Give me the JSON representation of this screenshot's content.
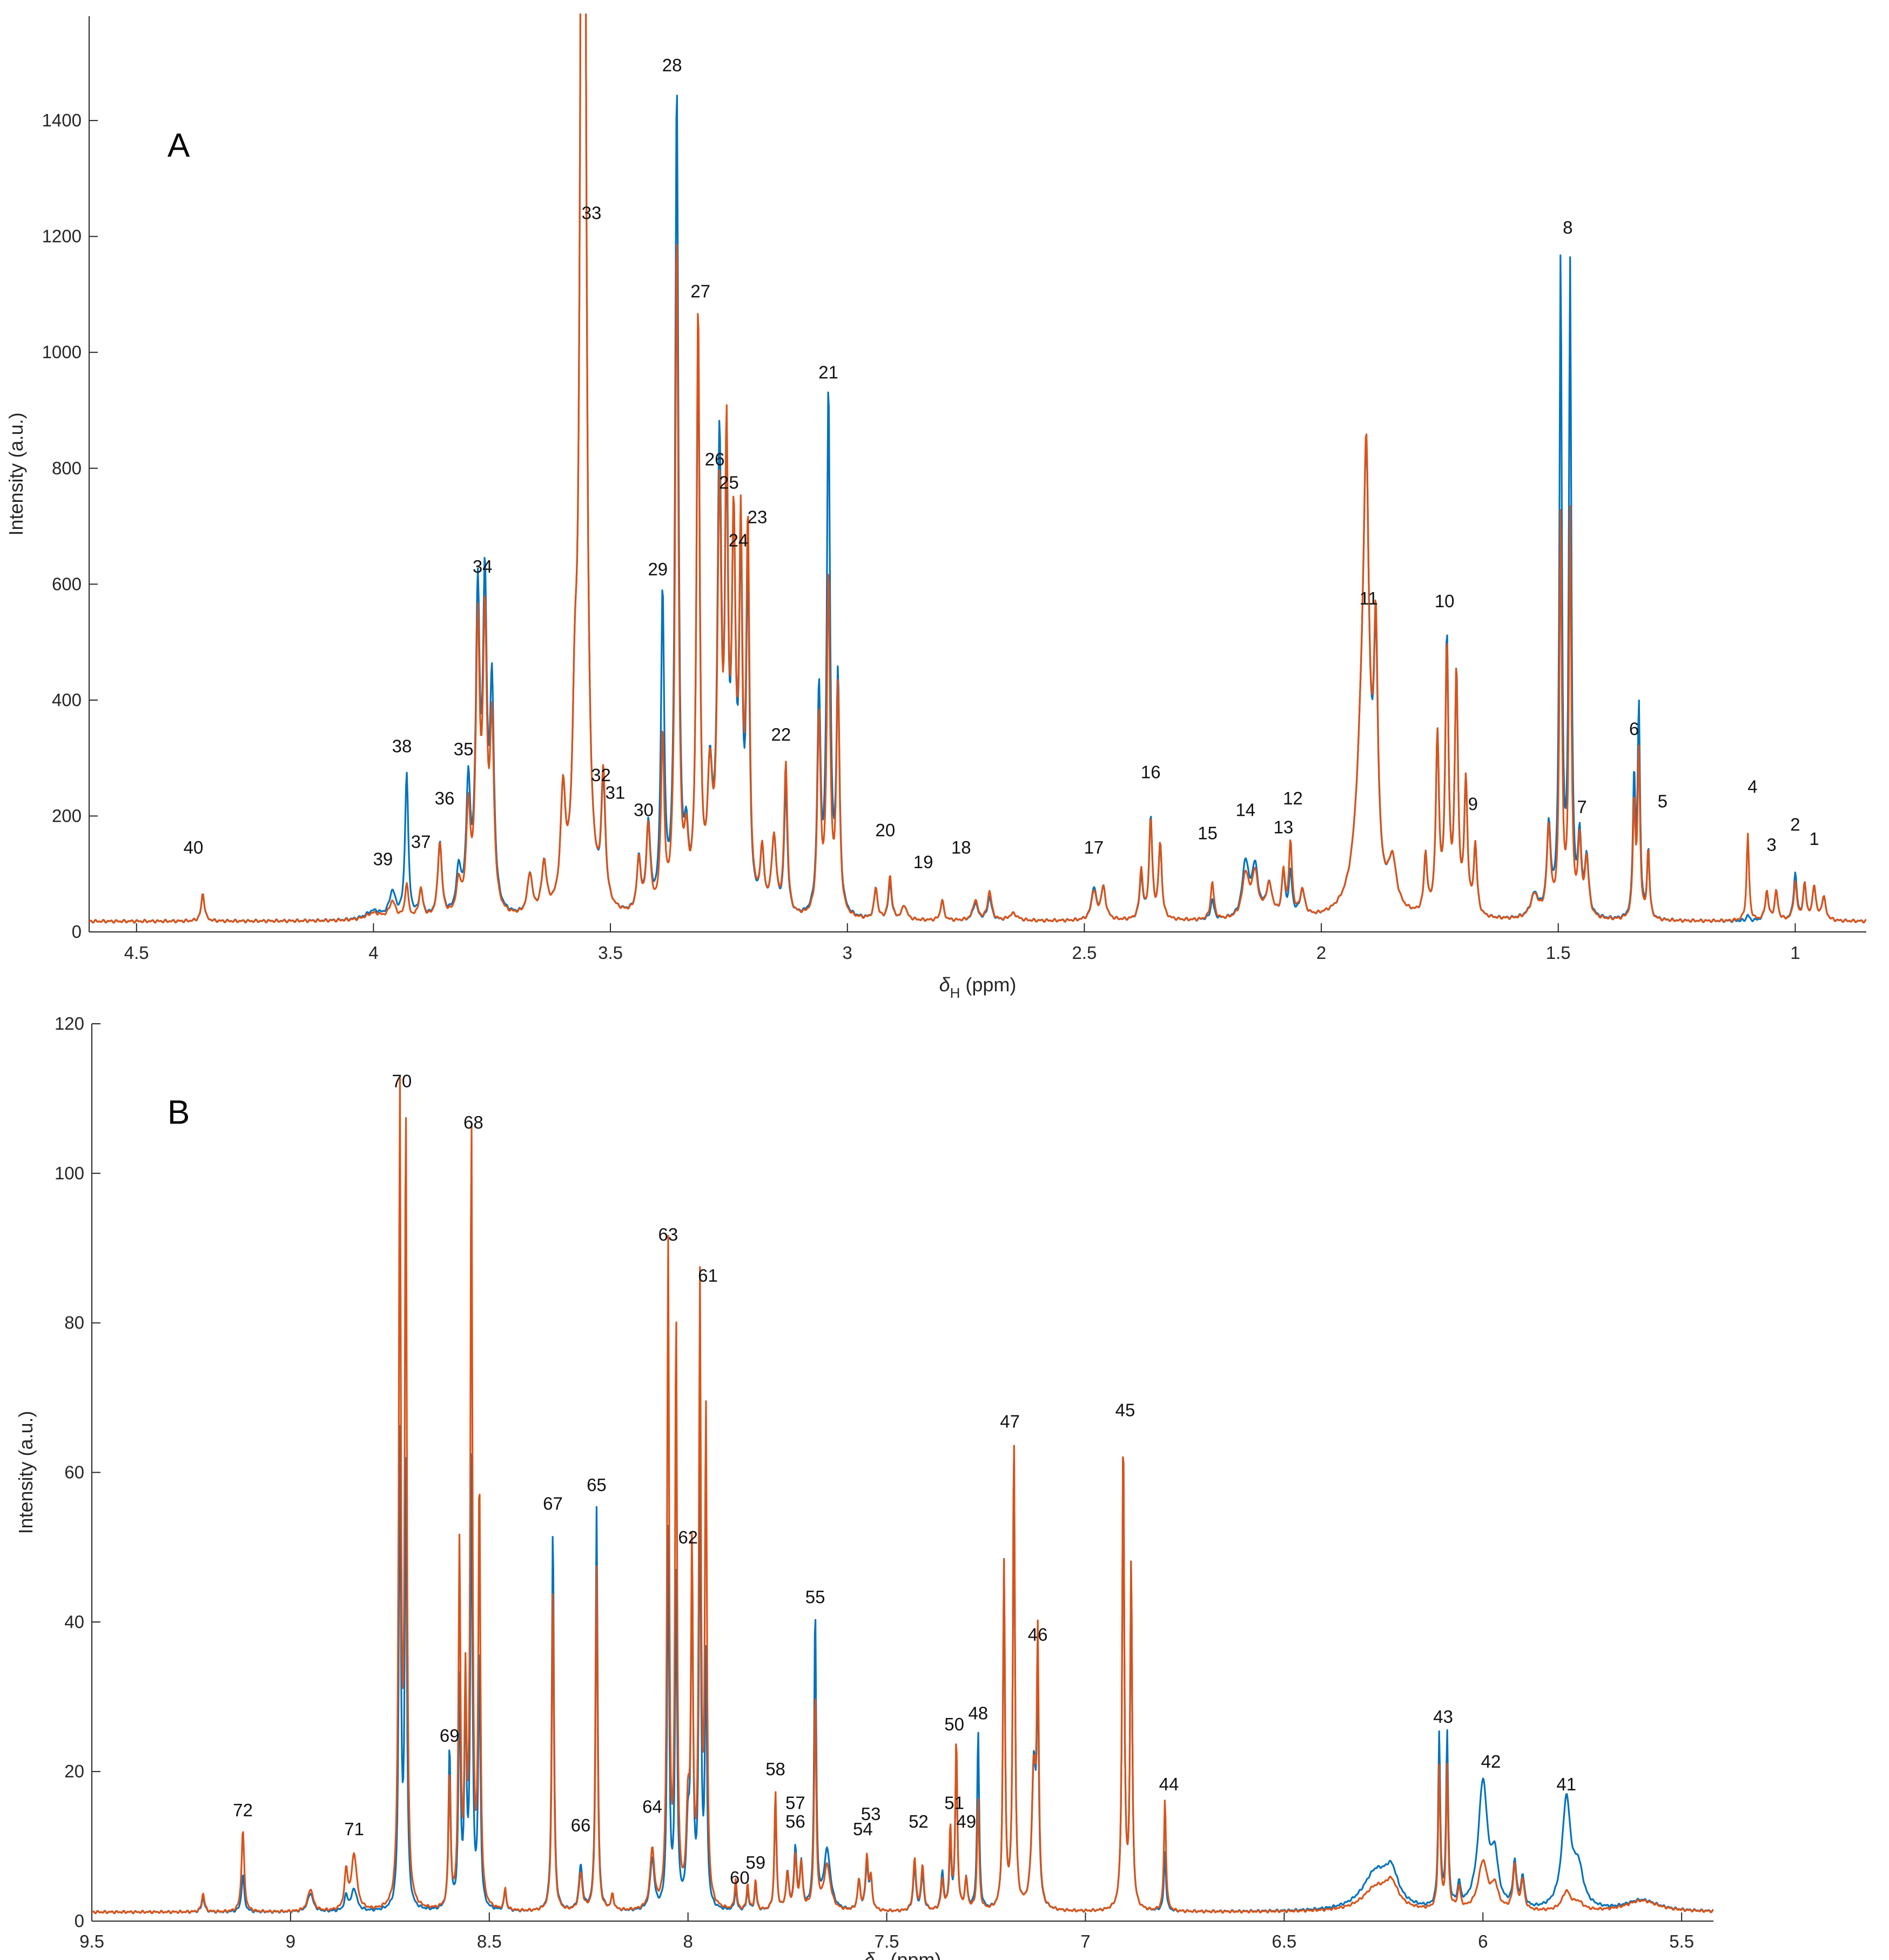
{
  "chart_data": [
    {
      "type": "line",
      "panel_label": "A",
      "xlabel_main": "δ",
      "xlabel_sub": "H",
      "xlabel_unit": " (ppm)",
      "ylabel": "Intensity (a.u.)",
      "xlim": [
        4.6,
        0.85
      ],
      "ylim": [
        0,
        1580
      ],
      "xticks": [
        4.5,
        4,
        3.5,
        3,
        2.5,
        2,
        1.5,
        1
      ],
      "xtick_labels": [
        "4.5",
        "4",
        "3.5",
        "3",
        "2.5",
        "2",
        "1.5",
        "1"
      ],
      "yticks": [
        0,
        200,
        400,
        600,
        800,
        1000,
        1200,
        1400
      ],
      "ytick_labels": [
        "0",
        "200",
        "400",
        "600",
        "800",
        "1000",
        "1200",
        "1400"
      ],
      "baseline": 18,
      "colors": {
        "blue": "#0072BD",
        "orange": "#D95319"
      },
      "peaks": [
        [
          4.36,
          48,
          48,
          0.004
        ],
        [
          4.0,
          15,
          12,
          0.02
        ],
        [
          3.96,
          45,
          30,
          0.008
        ],
        [
          3.93,
          250,
          60,
          0.004
        ],
        [
          3.9,
          45,
          50,
          0.005
        ],
        [
          3.86,
          130,
          130,
          0.005
        ],
        [
          3.82,
          75,
          55,
          0.006
        ],
        [
          3.8,
          215,
          175,
          0.005
        ],
        [
          3.78,
          525,
          475,
          0.005
        ],
        [
          3.765,
          535,
          480,
          0.005
        ],
        [
          3.75,
          370,
          310,
          0.005
        ],
        [
          3.67,
          70,
          70,
          0.006
        ],
        [
          3.64,
          85,
          85,
          0.006
        ],
        [
          3.6,
          190,
          190,
          0.006
        ],
        [
          3.575,
          260,
          260,
          0.006
        ],
        [
          3.56,
          1570,
          1570,
          0.005
        ],
        [
          3.555,
          1570,
          1570,
          0.005
        ],
        [
          3.515,
          205,
          220,
          0.005
        ],
        [
          3.44,
          90,
          90,
          0.005
        ],
        [
          3.42,
          150,
          150,
          0.005
        ],
        [
          3.39,
          545,
          300,
          0.004
        ],
        [
          3.36,
          1425,
          1165,
          0.004
        ],
        [
          3.34,
          100,
          100,
          0.005
        ],
        [
          3.315,
          980,
          1030,
          0.004
        ],
        [
          3.29,
          210,
          210,
          0.006
        ],
        [
          3.27,
          770,
          680,
          0.005
        ],
        [
          3.255,
          665,
          735,
          0.004
        ],
        [
          3.24,
          610,
          610,
          0.005
        ],
        [
          3.225,
          560,
          600,
          0.004
        ],
        [
          3.21,
          560,
          640,
          0.004
        ],
        [
          3.18,
          100,
          100,
          0.005
        ],
        [
          3.155,
          130,
          130,
          0.006
        ],
        [
          3.13,
          220,
          260,
          0.004
        ],
        [
          3.06,
          380,
          340,
          0.004
        ],
        [
          3.04,
          900,
          580,
          0.004
        ],
        [
          3.02,
          400,
          390,
          0.004
        ],
        [
          2.94,
          55,
          55,
          0.004
        ],
        [
          2.91,
          65,
          75,
          0.004
        ],
        [
          2.88,
          25,
          25,
          0.006
        ],
        [
          2.8,
          35,
          35,
          0.004
        ],
        [
          2.73,
          30,
          35,
          0.006
        ],
        [
          2.7,
          40,
          50,
          0.005
        ],
        [
          2.65,
          12,
          12,
          0.01
        ],
        [
          2.48,
          55,
          50,
          0.006
        ],
        [
          2.46,
          55,
          55,
          0.006
        ],
        [
          2.38,
          75,
          85,
          0.004
        ],
        [
          2.36,
          175,
          170,
          0.004
        ],
        [
          2.34,
          130,
          130,
          0.004
        ],
        [
          2.23,
          35,
          65,
          0.004
        ],
        [
          2.16,
          95,
          75,
          0.008
        ],
        [
          2.14,
          85,
          75,
          0.008
        ],
        [
          2.11,
          55,
          55,
          0.008
        ],
        [
          2.08,
          75,
          75,
          0.004
        ],
        [
          2.065,
          75,
          125,
          0.004
        ],
        [
          2.04,
          45,
          45,
          0.006
        ],
        [
          1.91,
          380,
          380,
          0.016
        ],
        [
          1.905,
          460,
          470,
          0.006
        ],
        [
          1.885,
          380,
          400,
          0.005
        ],
        [
          1.85,
          80,
          80,
          0.01
        ],
        [
          1.78,
          100,
          100,
          0.004
        ],
        [
          1.755,
          300,
          300,
          0.004
        ],
        [
          1.735,
          470,
          455,
          0.004
        ],
        [
          1.715,
          410,
          410,
          0.004
        ],
        [
          1.695,
          225,
          225,
          0.004
        ],
        [
          1.675,
          120,
          120,
          0.004
        ],
        [
          1.55,
          40,
          40,
          0.01
        ],
        [
          1.52,
          150,
          150,
          0.005
        ],
        [
          1.495,
          1125,
          690,
          0.003
        ],
        [
          1.475,
          1110,
          690,
          0.003
        ],
        [
          1.455,
          130,
          130,
          0.004
        ],
        [
          1.44,
          100,
          100,
          0.005
        ],
        [
          1.34,
          240,
          200,
          0.003
        ],
        [
          1.33,
          360,
          285,
          0.003
        ],
        [
          1.31,
          120,
          120,
          0.003
        ],
        [
          1.1,
          10,
          150,
          0.003
        ],
        [
          1.06,
          50,
          50,
          0.004
        ],
        [
          1.04,
          50,
          50,
          0.004
        ],
        [
          1.0,
          80,
          65,
          0.004
        ],
        [
          0.98,
          60,
          60,
          0.004
        ],
        [
          0.96,
          60,
          60,
          0.004
        ],
        [
          0.94,
          40,
          40,
          0.005
        ]
      ],
      "labels": [
        [
          "1",
          0.96,
          150
        ],
        [
          "2",
          1.0,
          175
        ],
        [
          "3",
          1.05,
          140
        ],
        [
          "4",
          1.09,
          240
        ],
        [
          "5",
          1.28,
          215
        ],
        [
          "6",
          1.34,
          340
        ],
        [
          "7",
          1.45,
          205
        ],
        [
          "8",
          1.48,
          1205
        ],
        [
          "9",
          1.68,
          210
        ],
        [
          "10",
          1.74,
          560
        ],
        [
          "11",
          1.9,
          565
        ],
        [
          "12",
          2.06,
          220
        ],
        [
          "13",
          2.08,
          170
        ],
        [
          "14",
          2.16,
          200
        ],
        [
          "15",
          2.24,
          160
        ],
        [
          "16",
          2.36,
          265
        ],
        [
          "17",
          2.48,
          135
        ],
        [
          "18",
          2.76,
          135
        ],
        [
          "19",
          2.84,
          110
        ],
        [
          "20",
          2.92,
          165
        ],
        [
          "21",
          3.04,
          955
        ],
        [
          "22",
          3.14,
          330
        ],
        [
          "23",
          3.19,
          705
        ],
        [
          "24",
          3.23,
          665
        ],
        [
          "25",
          3.25,
          765
        ],
        [
          "26",
          3.28,
          805
        ],
        [
          "27",
          3.31,
          1095
        ],
        [
          "28",
          3.37,
          1485
        ],
        [
          "29",
          3.4,
          615
        ],
        [
          "30",
          3.43,
          200
        ],
        [
          "31",
          3.49,
          230
        ],
        [
          "32",
          3.52,
          260
        ],
        [
          "33",
          3.54,
          1230
        ],
        [
          "34",
          3.77,
          620
        ],
        [
          "35",
          3.81,
          305
        ],
        [
          "36",
          3.85,
          220
        ],
        [
          "37",
          3.9,
          145
        ],
        [
          "38",
          3.94,
          310
        ],
        [
          "39",
          3.98,
          115
        ],
        [
          "40",
          4.38,
          135
        ]
      ]
    },
    {
      "type": "line",
      "panel_label": "B",
      "xlabel_main": "δ",
      "xlabel_sub": "H",
      "xlabel_unit": " (ppm)",
      "ylabel": "Intensity (a.u.)",
      "xlim": [
        9.5,
        5.42
      ],
      "ylim": [
        0,
        120
      ],
      "xticks": [
        9.5,
        9,
        8.5,
        8,
        7.5,
        7,
        6.5,
        6,
        5.5
      ],
      "xtick_labels": [
        "9.5",
        "9",
        "8.5",
        "8",
        "7.5",
        "7",
        "6.5",
        "6",
        "5.5"
      ],
      "yticks": [
        0,
        20,
        40,
        60,
        80,
        100,
        120
      ],
      "ytick_labels": [
        "0",
        "20",
        "40",
        "60",
        "80",
        "100",
        "120"
      ],
      "baseline": 1.2,
      "colors": {
        "blue": "#0072BD",
        "orange": "#D95319"
      },
      "peaks": [
        [
          9.22,
          2,
          2.5,
          0.004
        ],
        [
          9.12,
          5,
          11,
          0.004
        ],
        [
          8.95,
          2.5,
          3,
          0.008
        ],
        [
          8.86,
          2,
          5,
          0.005
        ],
        [
          8.84,
          3,
          7.5,
          0.008
        ],
        [
          8.725,
          63,
          108,
          0.003
        ],
        [
          8.71,
          60,
          105,
          0.003
        ],
        [
          8.6,
          22,
          18,
          0.003
        ],
        [
          8.575,
          30,
          48,
          0.003
        ],
        [
          8.56,
          28,
          28,
          0.003
        ],
        [
          8.545,
          60,
          104,
          0.003
        ],
        [
          8.525,
          35,
          57,
          0.003
        ],
        [
          8.46,
          3,
          3,
          0.003
        ],
        [
          8.34,
          52,
          44,
          0.003
        ],
        [
          8.27,
          6,
          5,
          0.005
        ],
        [
          8.23,
          54,
          46,
          0.003
        ],
        [
          8.19,
          2,
          2,
          0.004
        ],
        [
          8.09,
          7,
          8,
          0.006
        ],
        [
          8.05,
          50,
          88,
          0.003
        ],
        [
          8.03,
          45,
          78,
          0.003
        ],
        [
          8.0,
          10,
          12,
          0.005
        ],
        [
          7.99,
          46,
          46,
          0.003
        ],
        [
          7.97,
          57,
          82,
          0.003
        ],
        [
          7.955,
          33,
          65,
          0.003
        ],
        [
          7.88,
          3,
          4,
          0.003
        ],
        [
          7.85,
          3,
          3.5,
          0.003
        ],
        [
          7.83,
          3.5,
          4,
          0.003
        ],
        [
          7.78,
          15,
          16,
          0.003
        ],
        [
          7.75,
          5,
          5,
          0.004
        ],
        [
          7.73,
          8,
          7,
          0.004
        ],
        [
          7.715,
          6,
          6,
          0.004
        ],
        [
          7.68,
          40,
          29,
          0.003
        ],
        [
          7.65,
          8,
          6,
          0.01
        ],
        [
          7.57,
          4,
          4,
          0.004
        ],
        [
          7.55,
          6,
          7,
          0.004
        ],
        [
          7.54,
          4,
          4,
          0.004
        ],
        [
          7.43,
          6,
          7,
          0.004
        ],
        [
          7.41,
          5,
          6,
          0.004
        ],
        [
          7.36,
          5,
          4,
          0.004
        ],
        [
          7.34,
          9,
          11,
          0.003
        ],
        [
          7.325,
          22,
          23,
          0.003
        ],
        [
          7.3,
          4,
          4,
          0.004
        ],
        [
          7.27,
          24,
          15,
          0.003
        ],
        [
          7.205,
          46,
          46,
          0.003
        ],
        [
          7.18,
          63,
          63,
          0.003
        ],
        [
          7.13,
          19,
          18,
          0.006
        ],
        [
          7.12,
          28,
          34,
          0.003
        ],
        [
          6.905,
          64,
          64,
          0.003
        ],
        [
          6.885,
          46,
          46,
          0.003
        ],
        [
          6.8,
          8,
          15,
          0.003
        ],
        [
          6.27,
          5,
          3,
          0.04
        ],
        [
          6.23,
          4,
          3,
          0.02
        ],
        [
          6.11,
          23,
          19,
          0.003
        ],
        [
          6.09,
          23,
          19,
          0.003
        ],
        [
          6.06,
          3,
          3,
          0.004
        ],
        [
          6.0,
          17,
          6.5,
          0.014
        ],
        [
          5.97,
          6,
          3,
          0.01
        ],
        [
          5.92,
          6,
          6,
          0.005
        ],
        [
          5.9,
          4,
          4,
          0.005
        ],
        [
          5.79,
          14.5,
          2.5,
          0.013
        ],
        [
          5.76,
          5,
          1,
          0.015
        ],
        [
          5.6,
          1.5,
          1.5,
          0.05
        ]
      ],
      "labels": [
        [
          "41",
          5.79,
          17.5
        ],
        [
          "42",
          5.98,
          20.5
        ],
        [
          "43",
          6.1,
          26.5
        ],
        [
          "44",
          6.79,
          17.5
        ],
        [
          "45",
          6.9,
          67.5
        ],
        [
          "46",
          7.12,
          37.5
        ],
        [
          "47",
          7.19,
          66
        ],
        [
          "48",
          7.27,
          27
        ],
        [
          "49",
          7.3,
          12.5
        ],
        [
          "50",
          7.33,
          25.5
        ],
        [
          "51",
          7.33,
          15
        ],
        [
          "52",
          7.42,
          12.5
        ],
        [
          "53",
          7.54,
          13.5
        ],
        [
          "54",
          7.56,
          11.5
        ],
        [
          "55",
          7.68,
          42.5
        ],
        [
          "56",
          7.73,
          12.5
        ],
        [
          "57",
          7.73,
          15
        ],
        [
          "58",
          7.78,
          19.5
        ],
        [
          "59",
          7.83,
          7
        ],
        [
          "60",
          7.87,
          5
        ],
        [
          "61",
          7.95,
          85.5
        ],
        [
          "62",
          8.0,
          50.5
        ],
        [
          "63",
          8.05,
          91
        ],
        [
          "64",
          8.09,
          14.5
        ],
        [
          "65",
          8.23,
          57.5
        ],
        [
          "66",
          8.27,
          12
        ],
        [
          "67",
          8.34,
          55
        ],
        [
          "68",
          8.54,
          106
        ],
        [
          "69",
          8.6,
          24
        ],
        [
          "70",
          8.72,
          111.5
        ],
        [
          "71",
          8.84,
          11.5
        ],
        [
          "72",
          9.12,
          14
        ]
      ]
    }
  ]
}
